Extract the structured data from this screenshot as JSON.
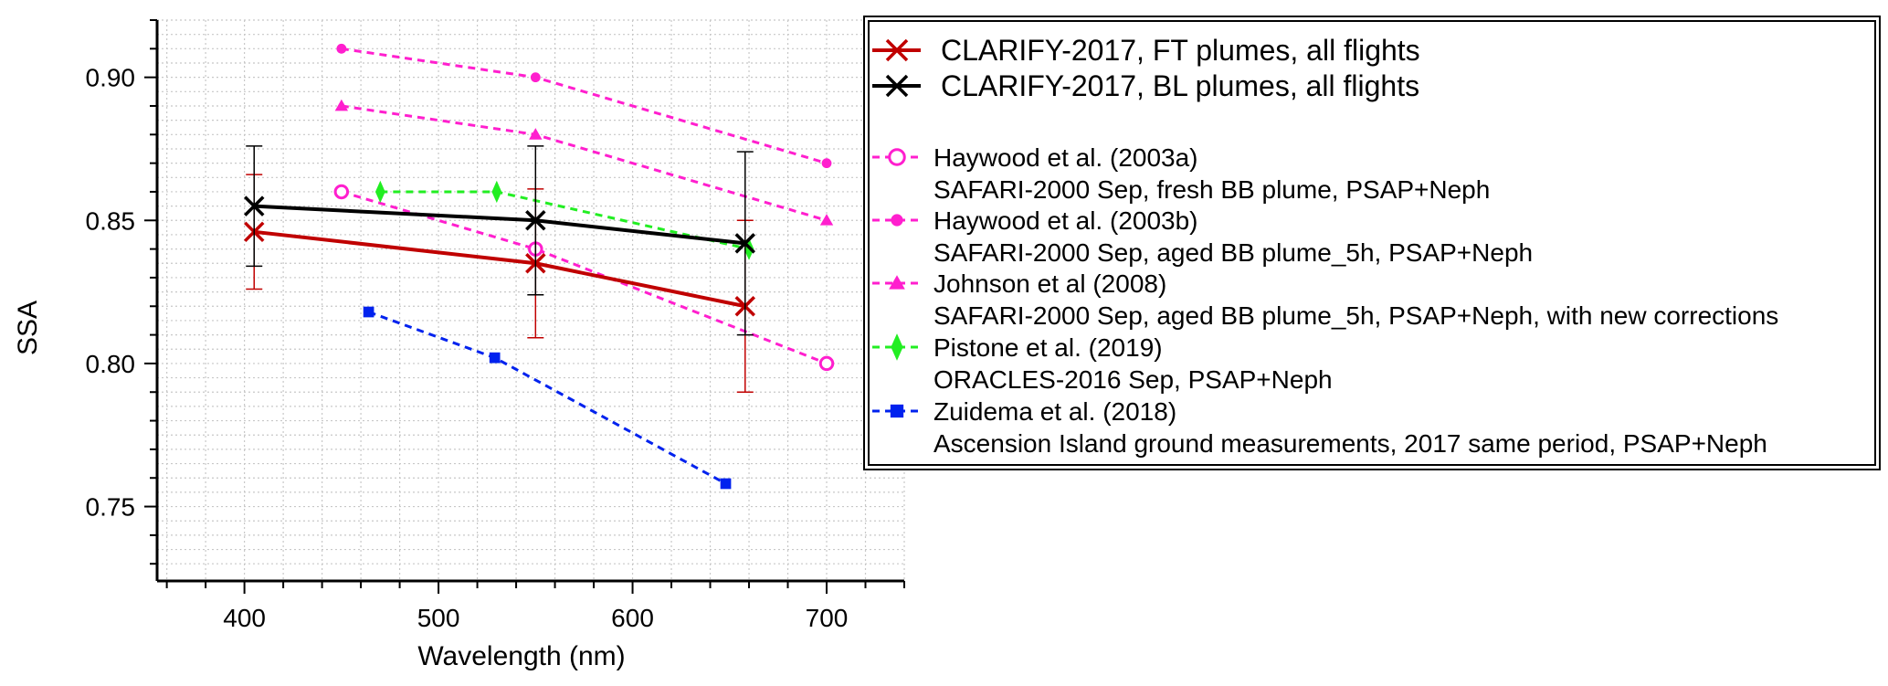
{
  "chart_data": {
    "type": "line",
    "title": "",
    "xlabel": "Wavelength (nm)",
    "ylabel": "SSA",
    "xlim": [
      355,
      740
    ],
    "ylim": [
      0.724,
      0.92
    ],
    "x_ticks": [
      400,
      500,
      600,
      700
    ],
    "x_tick_labels": [
      "400",
      "500",
      "600",
      "700"
    ],
    "y_ticks": [
      0.75,
      0.8,
      0.85,
      0.9
    ],
    "y_tick_labels": [
      "0.75",
      "0.80",
      "0.85",
      "0.90"
    ],
    "grid": true,
    "legend_position": "top-right, outside plot",
    "series": [
      {
        "name": "CLARIFY-2017, FT plumes, all flights",
        "color": "#c00000",
        "line": "solid",
        "marker": "x",
        "x": [
          405,
          550,
          658
        ],
        "y": [
          0.846,
          0.835,
          0.82
        ],
        "err": [
          0.02,
          0.026,
          0.03
        ]
      },
      {
        "name": "CLARIFY-2017, BL plumes, all flights",
        "color": "#000000",
        "line": "solid",
        "marker": "x",
        "x": [
          405,
          550,
          658
        ],
        "y": [
          0.855,
          0.85,
          0.842
        ],
        "err": [
          0.021,
          0.026,
          0.032
        ]
      },
      {
        "name": "Haywood et al. (2003a)",
        "description": "SAFARI-2000 Sep, fresh BB plume, PSAP+Neph",
        "color": "#ff1fce",
        "line": "dashed",
        "marker": "open-circle",
        "x": [
          450,
          550,
          700
        ],
        "y": [
          0.86,
          0.84,
          0.8
        ]
      },
      {
        "name": "Haywood et al. (2003b)",
        "description": "SAFARI-2000 Sep, aged BB plume_5h, PSAP+Neph",
        "color": "#ff1fce",
        "line": "dashed",
        "marker": "filled-circle",
        "x": [
          450,
          550,
          700
        ],
        "y": [
          0.91,
          0.9,
          0.87
        ]
      },
      {
        "name": "Johnson et al (2008)",
        "description": "SAFARI-2000 Sep, aged BB plume_5h, PSAP+Neph, with new corrections",
        "color": "#ff1fce",
        "line": "dashed",
        "marker": "triangle",
        "x": [
          450,
          550,
          700
        ],
        "y": [
          0.89,
          0.88,
          0.85
        ]
      },
      {
        "name": "Pistone et al. (2019)",
        "description": "ORACLES-2016 Sep, PSAP+Neph",
        "color": "#22ee22",
        "line": "dashed",
        "marker": "diamond",
        "x": [
          470,
          530,
          660
        ],
        "y": [
          0.86,
          0.86,
          0.84
        ]
      },
      {
        "name": "Zuidema et al. (2018)",
        "description": "Ascension Island ground measurements, 2017 same period, PSAP+Neph",
        "color": "#0022ee",
        "line": "dashed",
        "marker": "square",
        "x": [
          464,
          529,
          648
        ],
        "y": [
          0.818,
          0.802,
          0.758
        ]
      }
    ]
  }
}
